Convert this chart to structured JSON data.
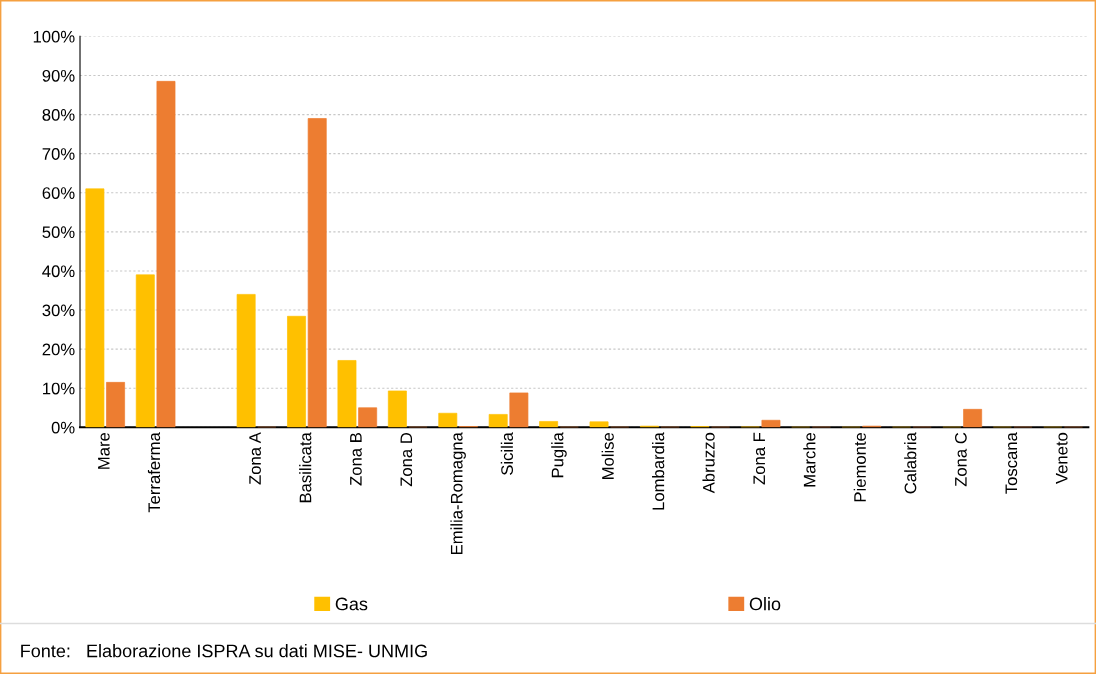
{
  "chart_data": {
    "type": "bar",
    "categories": [
      "Mare",
      "Terraferma",
      null,
      "Zona A",
      "Basilicata",
      "Zona B",
      "Zona D",
      "Emilia-Romagna",
      "Sicilia",
      "Puglia",
      "Molise",
      "Lombardia",
      "Abruzzo",
      "Zona F",
      "Marche",
      "Piemonte",
      "Calabria",
      "Zona C",
      "Toscana",
      "Veneto"
    ],
    "series": [
      {
        "name": "Gas",
        "color": "#ffc000",
        "values": [
          61,
          39,
          null,
          34,
          28.4,
          17.1,
          9.3,
          3.6,
          3.3,
          1.5,
          1.4,
          0.3,
          0.2,
          0.1,
          0,
          0,
          0,
          0,
          0,
          0
        ]
      },
      {
        "name": "Olio",
        "color": "#ed7d31",
        "values": [
          11.5,
          88.5,
          null,
          0,
          79,
          5.0,
          0,
          0.2,
          8.8,
          0,
          0,
          0,
          0,
          1.8,
          0,
          0.3,
          0,
          4.6,
          0,
          0
        ]
      }
    ],
    "ylim": [
      0,
      100
    ],
    "yticks": [
      {
        "value": 0,
        "label": "0%"
      },
      {
        "value": 10,
        "label": "10%"
      },
      {
        "value": 20,
        "label": "20%"
      },
      {
        "value": 30,
        "label": "30%"
      },
      {
        "value": 40,
        "label": "40%"
      },
      {
        "value": 50,
        "label": "50%"
      },
      {
        "value": 60,
        "label": "60%"
      },
      {
        "value": 70,
        "label": "70%"
      },
      {
        "value": 80,
        "label": "80%"
      },
      {
        "value": 90,
        "label": "90%"
      },
      {
        "value": 100,
        "label": "100%"
      }
    ],
    "grid": "y",
    "legend": "bottom",
    "annotations": [
      "Fonte:   Elaborazione ISPRA su dati MISE- UNMIG"
    ]
  }
}
